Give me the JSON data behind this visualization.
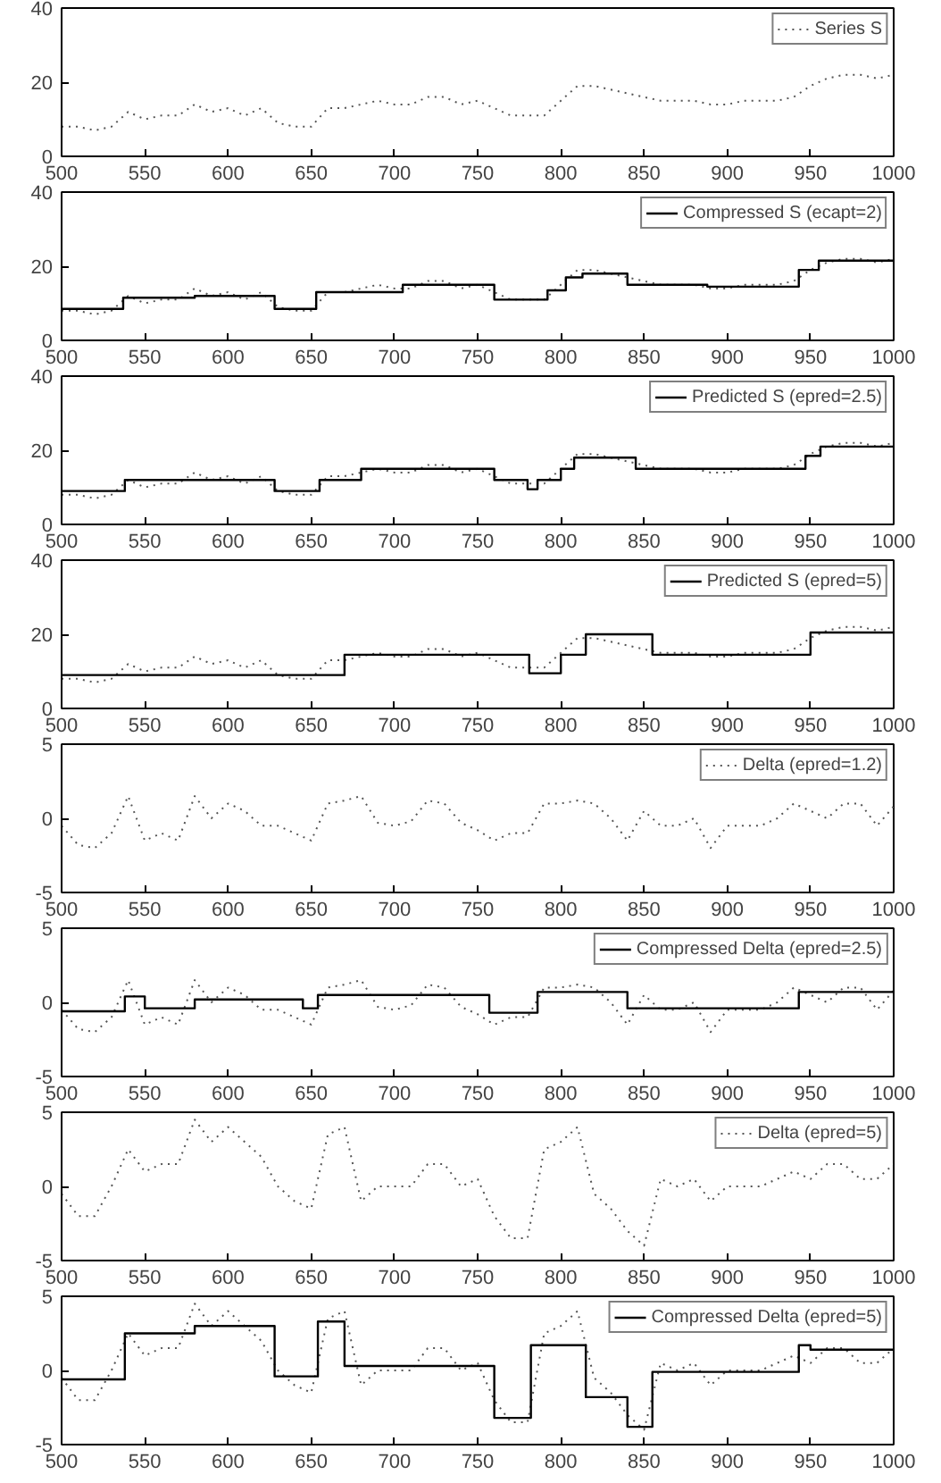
{
  "chart_data": [
    {
      "type": "line",
      "xlim": [
        500,
        1000
      ],
      "xticks": [
        500,
        550,
        600,
        650,
        700,
        750,
        800,
        850,
        900,
        950,
        1000
      ],
      "ylim": [
        0,
        40
      ],
      "yticks": [
        0,
        20,
        40
      ],
      "grid": false,
      "legend": "top right",
      "series": [
        {
          "name": "Series S",
          "color": "#555555",
          "line_style": "dotted",
          "x": [
            500,
            510,
            520,
            530,
            540,
            550,
            560,
            570,
            580,
            590,
            600,
            610,
            620,
            630,
            640,
            650,
            660,
            670,
            680,
            690,
            700,
            710,
            720,
            730,
            740,
            750,
            760,
            770,
            780,
            790,
            800,
            810,
            820,
            830,
            840,
            850,
            860,
            870,
            880,
            890,
            900,
            910,
            920,
            930,
            940,
            950,
            960,
            970,
            980,
            990,
            1000
          ],
          "values": [
            8,
            8,
            7,
            8,
            12,
            10,
            11,
            11,
            14,
            12,
            13,
            11,
            13,
            9,
            8,
            8,
            13,
            13,
            14,
            15,
            14,
            14,
            16,
            16,
            14,
            15,
            13,
            11,
            11,
            11,
            15,
            19,
            19,
            18,
            17,
            16,
            15,
            15,
            15,
            14,
            14,
            15,
            15,
            15,
            16,
            19,
            21,
            22,
            22,
            21,
            22
          ]
        }
      ]
    },
    {
      "type": "line",
      "xlim": [
        500,
        1000
      ],
      "xticks": [
        500,
        550,
        600,
        650,
        700,
        750,
        800,
        850,
        900,
        950,
        1000
      ],
      "ylim": [
        0,
        40
      ],
      "yticks": [
        0,
        20,
        40
      ],
      "grid": false,
      "legend": "top right",
      "series": [
        {
          "color": "#555555",
          "line_style": "dotted",
          "x": [
            500,
            510,
            520,
            530,
            540,
            550,
            560,
            570,
            580,
            590,
            600,
            610,
            620,
            630,
            640,
            650,
            660,
            670,
            680,
            690,
            700,
            710,
            720,
            730,
            740,
            750,
            760,
            770,
            780,
            790,
            800,
            810,
            820,
            830,
            840,
            850,
            860,
            870,
            880,
            890,
            900,
            910,
            920,
            930,
            940,
            950,
            960,
            970,
            980,
            990,
            1000
          ],
          "values": [
            8,
            8,
            7,
            8,
            12,
            10,
            11,
            11,
            14,
            12,
            13,
            11,
            13,
            9,
            8,
            8,
            13,
            13,
            14,
            15,
            14,
            14,
            16,
            16,
            14,
            15,
            13,
            11,
            11,
            11,
            15,
            19,
            19,
            18,
            17,
            16,
            15,
            15,
            15,
            14,
            14,
            15,
            15,
            15,
            16,
            19,
            21,
            22,
            22,
            21,
            22
          ]
        },
        {
          "name": "Compressed S (ecapt=2)",
          "type": "step",
          "color": "#000000",
          "line_style": "solid",
          "x": [
            500,
            537,
            580,
            628,
            653,
            705,
            760,
            792,
            803,
            813,
            840,
            888,
            943,
            955,
            1000
          ],
          "values": [
            8.5,
            11.5,
            12,
            8.5,
            13,
            15,
            11,
            13.5,
            17,
            18,
            15,
            14.5,
            19,
            21.5,
            21.5
          ]
        }
      ]
    },
    {
      "type": "line",
      "xlim": [
        500,
        1000
      ],
      "xticks": [
        500,
        550,
        600,
        650,
        700,
        750,
        800,
        850,
        900,
        950,
        1000
      ],
      "ylim": [
        0,
        40
      ],
      "yticks": [
        0,
        20,
        40
      ],
      "grid": false,
      "legend": "top right",
      "series": [
        {
          "color": "#555555",
          "line_style": "dotted",
          "x": [
            500,
            510,
            520,
            530,
            540,
            550,
            560,
            570,
            580,
            590,
            600,
            610,
            620,
            630,
            640,
            650,
            660,
            670,
            680,
            690,
            700,
            710,
            720,
            730,
            740,
            750,
            760,
            770,
            780,
            790,
            800,
            810,
            820,
            830,
            840,
            850,
            860,
            870,
            880,
            890,
            900,
            910,
            920,
            930,
            940,
            950,
            960,
            970,
            980,
            990,
            1000
          ],
          "values": [
            8,
            8,
            7,
            8,
            12,
            10,
            11,
            11,
            14,
            12,
            13,
            11,
            13,
            9,
            8,
            8,
            13,
            13,
            14,
            15,
            14,
            14,
            16,
            16,
            14,
            15,
            13,
            11,
            11,
            11,
            15,
            19,
            19,
            18,
            17,
            16,
            15,
            15,
            15,
            14,
            14,
            15,
            15,
            15,
            16,
            19,
            21,
            22,
            22,
            21,
            22
          ]
        },
        {
          "name": "Predicted S (epred=2.5)",
          "type": "step",
          "color": "#000000",
          "line_style": "solid",
          "x": [
            500,
            538,
            628,
            655,
            680,
            760,
            780,
            786,
            800,
            808,
            845,
            947,
            956,
            1000
          ],
          "values": [
            9,
            12,
            9,
            12,
            15,
            12,
            9.5,
            12,
            15,
            18,
            15,
            18.5,
            21,
            21
          ]
        }
      ]
    },
    {
      "type": "line",
      "xlim": [
        500,
        1000
      ],
      "xticks": [
        500,
        550,
        600,
        650,
        700,
        750,
        800,
        850,
        900,
        950,
        1000
      ],
      "ylim": [
        0,
        40
      ],
      "yticks": [
        0,
        20,
        40
      ],
      "grid": false,
      "legend": "top right",
      "series": [
        {
          "color": "#555555",
          "line_style": "dotted",
          "x": [
            500,
            510,
            520,
            530,
            540,
            550,
            560,
            570,
            580,
            590,
            600,
            610,
            620,
            630,
            640,
            650,
            660,
            670,
            680,
            690,
            700,
            710,
            720,
            730,
            740,
            750,
            760,
            770,
            780,
            790,
            800,
            810,
            820,
            830,
            840,
            850,
            860,
            870,
            880,
            890,
            900,
            910,
            920,
            930,
            940,
            950,
            960,
            970,
            980,
            990,
            1000
          ],
          "values": [
            8,
            8,
            7,
            8,
            12,
            10,
            11,
            11,
            14,
            12,
            13,
            11,
            13,
            9,
            8,
            8,
            13,
            13,
            14,
            15,
            14,
            14,
            16,
            16,
            14,
            15,
            13,
            11,
            11,
            11,
            15,
            19,
            19,
            18,
            17,
            16,
            15,
            15,
            15,
            14,
            14,
            15,
            15,
            15,
            16,
            19,
            21,
            22,
            22,
            21,
            22
          ]
        },
        {
          "name": "Predicted S (epred=5)",
          "type": "step",
          "color": "#000000",
          "line_style": "solid",
          "x": [
            500,
            670,
            781,
            800,
            815,
            855,
            950,
            1000
          ],
          "values": [
            9,
            14.5,
            9.5,
            14.5,
            20,
            14.5,
            20.5,
            20.5
          ]
        }
      ]
    },
    {
      "type": "line",
      "xlim": [
        500,
        1000
      ],
      "xticks": [
        500,
        550,
        600,
        650,
        700,
        750,
        800,
        850,
        900,
        950,
        1000
      ],
      "ylim": [
        -5,
        5
      ],
      "yticks": [
        -5,
        0,
        5
      ],
      "grid": false,
      "legend": "top right",
      "series": [
        {
          "name": "Delta (epred=1.2)",
          "color": "#555555",
          "line_style": "dotted",
          "x": [
            500,
            510,
            520,
            530,
            540,
            550,
            560,
            570,
            580,
            590,
            600,
            610,
            620,
            630,
            640,
            650,
            660,
            670,
            680,
            690,
            700,
            710,
            720,
            730,
            740,
            750,
            760,
            770,
            780,
            790,
            800,
            810,
            820,
            830,
            840,
            850,
            860,
            870,
            880,
            890,
            900,
            910,
            920,
            930,
            940,
            950,
            960,
            970,
            980,
            990,
            1000
          ],
          "values": [
            -0.5,
            -1.8,
            -2,
            -1,
            1.5,
            -1.5,
            -1,
            -1.5,
            1.5,
            0,
            1,
            0.5,
            -0.5,
            -0.5,
            -1,
            -1.5,
            1,
            1.2,
            1.5,
            -0.3,
            -0.5,
            -0.2,
            1.2,
            1,
            -0.3,
            -0.8,
            -1.5,
            -1,
            -1,
            1,
            1,
            1.2,
            1,
            0,
            -1.5,
            0.5,
            -0.5,
            -0.5,
            0,
            -2,
            -0.5,
            -0.5,
            -0.5,
            0,
            1,
            0.5,
            0,
            1,
            1,
            -0.5,
            0.8
          ]
        }
      ]
    },
    {
      "type": "line",
      "xlim": [
        500,
        1000
      ],
      "xticks": [
        500,
        550,
        600,
        650,
        700,
        750,
        800,
        850,
        900,
        950,
        1000
      ],
      "ylim": [
        -5,
        5
      ],
      "yticks": [
        -5,
        0,
        5
      ],
      "grid": false,
      "legend": "top right",
      "series": [
        {
          "color": "#555555",
          "line_style": "dotted",
          "x": [
            500,
            510,
            520,
            530,
            540,
            550,
            560,
            570,
            580,
            590,
            600,
            610,
            620,
            630,
            640,
            650,
            660,
            670,
            680,
            690,
            700,
            710,
            720,
            730,
            740,
            750,
            760,
            770,
            780,
            790,
            800,
            810,
            820,
            830,
            840,
            850,
            860,
            870,
            880,
            890,
            900,
            910,
            920,
            930,
            940,
            950,
            960,
            970,
            980,
            990,
            1000
          ],
          "values": [
            -0.5,
            -1.8,
            -2,
            -1,
            1.5,
            -1.5,
            -1,
            -1.5,
            1.5,
            0,
            1,
            0.5,
            -0.5,
            -0.5,
            -1,
            -1.5,
            1,
            1.2,
            1.5,
            -0.3,
            -0.5,
            -0.2,
            1.2,
            1,
            -0.3,
            -0.8,
            -1.5,
            -1,
            -1,
            1,
            1,
            1.2,
            1,
            0,
            -1.5,
            0.5,
            -0.5,
            -0.5,
            0,
            -2,
            -0.5,
            -0.5,
            -0.5,
            0,
            1,
            0.5,
            0,
            1,
            1,
            -0.5,
            0.8
          ]
        },
        {
          "name": "Compressed Delta (epred=2.5)",
          "type": "step",
          "color": "#000000",
          "line_style": "solid",
          "x": [
            500,
            538,
            550,
            580,
            645,
            654,
            757,
            786,
            840,
            943,
            1000
          ],
          "values": [
            -0.6,
            0.4,
            -0.4,
            0.2,
            -0.4,
            0.5,
            -0.7,
            0.7,
            -0.4,
            0.7,
            0.7
          ]
        }
      ]
    },
    {
      "type": "line",
      "xlim": [
        500,
        1000
      ],
      "xticks": [
        500,
        550,
        600,
        650,
        700,
        750,
        800,
        850,
        900,
        950,
        1000
      ],
      "ylim": [
        -5,
        5
      ],
      "yticks": [
        -5,
        0,
        5
      ],
      "grid": false,
      "legend": "top right",
      "series": [
        {
          "name": "Delta (epred=5)",
          "color": "#555555",
          "line_style": "dotted",
          "x": [
            500,
            510,
            520,
            530,
            540,
            550,
            560,
            570,
            580,
            590,
            600,
            610,
            620,
            630,
            640,
            650,
            660,
            670,
            680,
            690,
            700,
            710,
            720,
            730,
            740,
            750,
            760,
            770,
            780,
            790,
            800,
            810,
            820,
            830,
            840,
            850,
            860,
            870,
            880,
            890,
            900,
            910,
            920,
            930,
            940,
            950,
            960,
            970,
            980,
            990,
            1000
          ],
          "values": [
            -0.5,
            -2,
            -2,
            0,
            2.5,
            1,
            1.5,
            1.5,
            4.5,
            3,
            4,
            3,
            2,
            0,
            -1,
            -1.5,
            3.5,
            4,
            -1,
            0,
            0,
            0,
            1.5,
            1.5,
            0,
            0.5,
            -2,
            -3.5,
            -3.5,
            2.5,
            3,
            4,
            -0.5,
            -1.5,
            -3,
            -4,
            0.5,
            0,
            0.5,
            -1,
            0,
            0,
            0,
            0.5,
            1,
            0.5,
            1.5,
            1.5,
            0.5,
            0.5,
            1.5
          ]
        }
      ]
    },
    {
      "type": "line",
      "xlim": [
        500,
        1000
      ],
      "xticks": [
        500,
        550,
        600,
        650,
        700,
        750,
        800,
        850,
        900,
        950,
        1000
      ],
      "ylim": [
        -5,
        5
      ],
      "yticks": [
        -5,
        0,
        5
      ],
      "grid": false,
      "legend": "top right",
      "series": [
        {
          "color": "#555555",
          "line_style": "dotted",
          "x": [
            500,
            510,
            520,
            530,
            540,
            550,
            560,
            570,
            580,
            590,
            600,
            610,
            620,
            630,
            640,
            650,
            660,
            670,
            680,
            690,
            700,
            710,
            720,
            730,
            740,
            750,
            760,
            770,
            780,
            790,
            800,
            810,
            820,
            830,
            840,
            850,
            860,
            870,
            880,
            890,
            900,
            910,
            920,
            930,
            940,
            950,
            960,
            970,
            980,
            990,
            1000
          ],
          "values": [
            -0.5,
            -2,
            -2,
            0,
            2.5,
            1,
            1.5,
            1.5,
            4.5,
            3,
            4,
            3,
            2,
            0,
            -1,
            -1.5,
            3.5,
            4,
            -1,
            0,
            0,
            0,
            1.5,
            1.5,
            0,
            0.5,
            -2,
            -3.5,
            -3.5,
            2.5,
            3,
            4,
            -0.5,
            -1.5,
            -3,
            -4,
            0.5,
            0,
            0.5,
            -1,
            0,
            0,
            0,
            0.5,
            1,
            0.5,
            1.5,
            1.5,
            0.5,
            0.5,
            1.5
          ]
        },
        {
          "name": "Compressed Delta (epred=5)",
          "type": "step",
          "color": "#000000",
          "line_style": "solid",
          "x": [
            500,
            538,
            580,
            628,
            654,
            670,
            760,
            782,
            815,
            840,
            855,
            943,
            950,
            1000
          ],
          "values": [
            -0.6,
            2.5,
            3,
            -0.4,
            3.3,
            0.3,
            -3.2,
            1.7,
            -1.8,
            -3.8,
            -0.1,
            1.7,
            1.4,
            1.4
          ]
        }
      ]
    }
  ]
}
